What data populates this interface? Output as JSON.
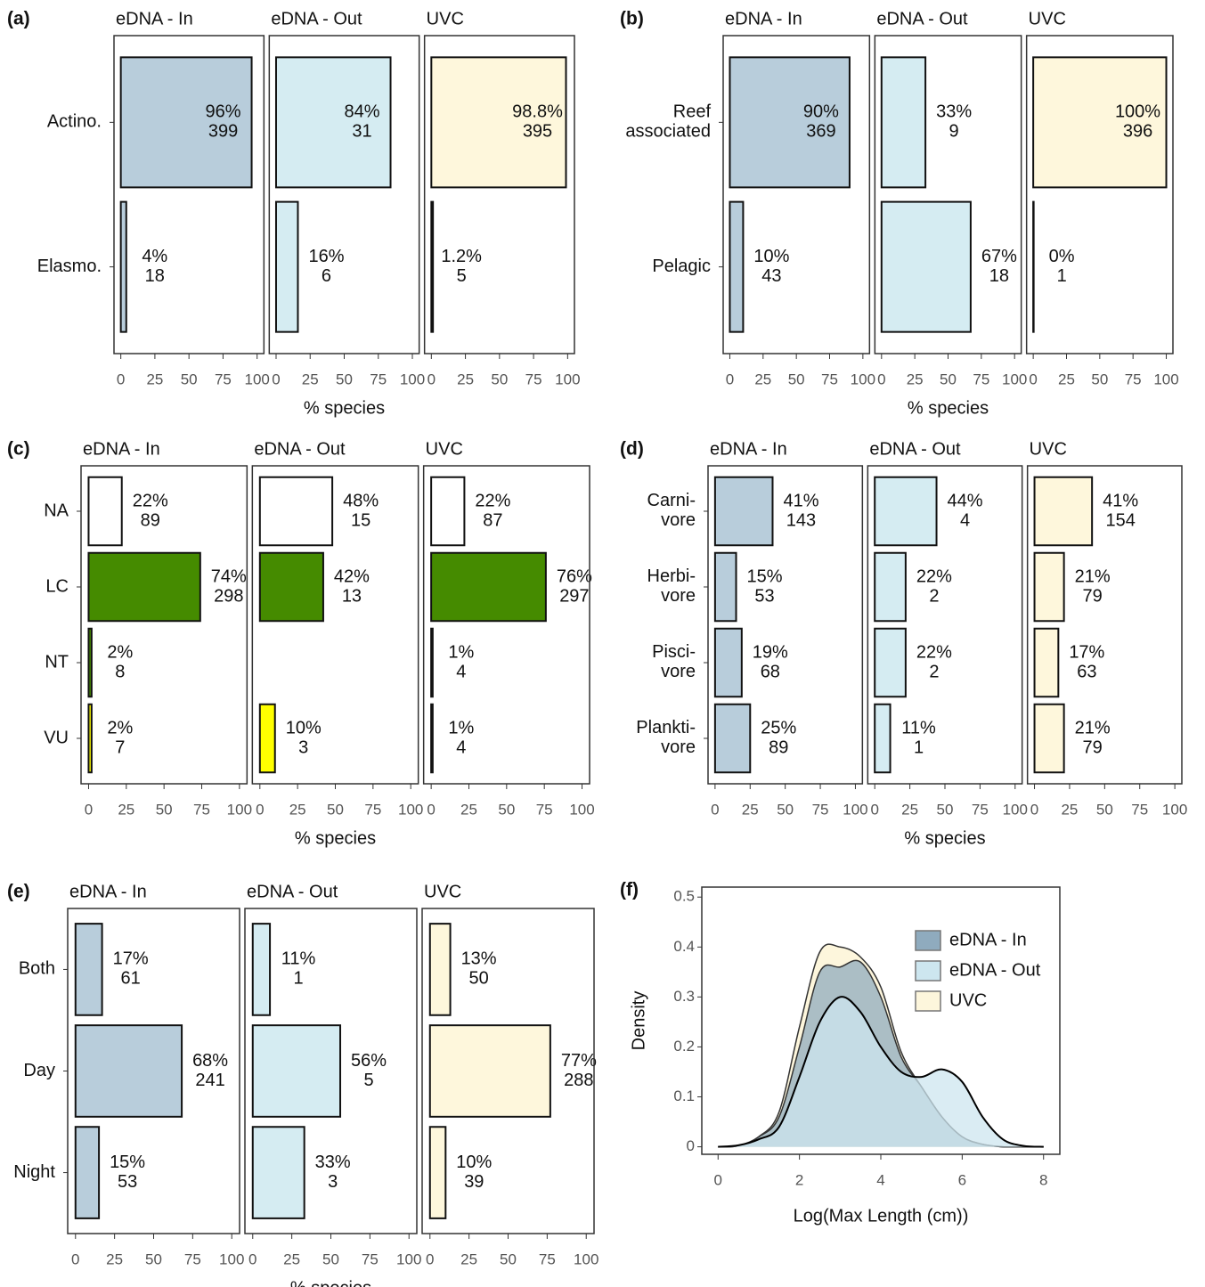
{
  "chart_data": [
    {
      "type": "facet-bar",
      "panel_label": "(a)",
      "xlabel": "% species",
      "xlim": [
        -5,
        105
      ],
      "xticks": [
        0,
        25,
        50,
        75,
        100
      ],
      "categories": [
        "Actino.",
        "Elasmo."
      ],
      "facets": [
        {
          "name": "eDNA - In",
          "color": "#b8cddb",
          "values": [
            96,
            4
          ],
          "value_labels": [
            "96%",
            "4%"
          ],
          "counts": [
            399,
            18
          ]
        },
        {
          "name": "eDNA - Out",
          "color": "#d5ecf2",
          "values": [
            84,
            16
          ],
          "value_labels": [
            "84%",
            "16%"
          ],
          "counts": [
            31,
            6
          ]
        },
        {
          "name": "UVC",
          "color": "#fef7dc",
          "values": [
            98.8,
            1.2
          ],
          "value_labels": [
            "98.8%",
            "1.2%"
          ],
          "counts": [
            395,
            5
          ]
        }
      ]
    },
    {
      "type": "facet-bar",
      "panel_label": "(b)",
      "xlabel": "% species",
      "xlim": [
        -5,
        105
      ],
      "xticks": [
        0,
        25,
        50,
        75,
        100
      ],
      "categories": [
        "Reef\nassociated",
        "Pelagic"
      ],
      "facets": [
        {
          "name": "eDNA - In",
          "color": "#b8cddb",
          "values": [
            90,
            10
          ],
          "value_labels": [
            "90%",
            "10%"
          ],
          "counts": [
            369,
            43
          ]
        },
        {
          "name": "eDNA - Out",
          "color": "#d5ecf2",
          "values": [
            33,
            67
          ],
          "value_labels": [
            "33%",
            "67%"
          ],
          "counts": [
            9,
            18
          ]
        },
        {
          "name": "UVC",
          "color": "#fef7dc",
          "values": [
            100,
            0
          ],
          "value_labels": [
            "100%",
            "0%"
          ],
          "counts": [
            396,
            1
          ]
        }
      ]
    },
    {
      "type": "facet-bar",
      "panel_label": "(c)",
      "xlabel": "% species",
      "xlim": [
        -5,
        105
      ],
      "xticks": [
        0,
        25,
        50,
        75,
        100
      ],
      "categories": [
        "NA",
        "LC",
        "NT",
        "VU"
      ],
      "colors": [
        "#ffffff",
        "#458b00",
        "#458b00",
        "#ffff00"
      ],
      "facets": [
        {
          "name": "eDNA - In",
          "values": [
            22,
            74,
            2,
            2
          ],
          "value_labels": [
            "22%",
            "74%",
            "2%",
            "2%"
          ],
          "counts": [
            89,
            298,
            8,
            7
          ]
        },
        {
          "name": "eDNA - Out",
          "values": [
            48,
            42,
            null,
            10
          ],
          "value_labels": [
            "48%",
            "42%",
            null,
            "10%"
          ],
          "counts": [
            15,
            13,
            null,
            3
          ]
        },
        {
          "name": "UVC",
          "values": [
            22,
            76,
            1,
            1
          ],
          "value_labels": [
            "22%",
            "76%",
            "1%",
            "1%"
          ],
          "counts": [
            87,
            297,
            4,
            4
          ]
        }
      ]
    },
    {
      "type": "facet-bar",
      "panel_label": "(d)",
      "xlabel": "% species",
      "xlim": [
        -5,
        105
      ],
      "xticks": [
        0,
        25,
        50,
        75,
        100
      ],
      "categories": [
        "Carni-\nvore",
        "Herbi-\nvore",
        "Pisci-\nvore",
        "Plankti-\nvore"
      ],
      "facets": [
        {
          "name": "eDNA - In",
          "color": "#b8cddb",
          "values": [
            41,
            15,
            19,
            25
          ],
          "value_labels": [
            "41%",
            "15%",
            "19%",
            "25%"
          ],
          "counts": [
            143,
            53,
            68,
            89
          ]
        },
        {
          "name": "eDNA - Out",
          "color": "#d5ecf2",
          "values": [
            44,
            22,
            22,
            11
          ],
          "value_labels": [
            "44%",
            "22%",
            "22%",
            "11%"
          ],
          "counts": [
            4,
            2,
            2,
            1
          ]
        },
        {
          "name": "UVC",
          "color": "#fef7dc",
          "values": [
            41,
            21,
            17,
            21
          ],
          "value_labels": [
            "41%",
            "21%",
            "17%",
            "21%"
          ],
          "counts": [
            154,
            79,
            63,
            79
          ]
        }
      ]
    },
    {
      "type": "facet-bar",
      "panel_label": "(e)",
      "xlabel": "% species",
      "xlim": [
        -5,
        105
      ],
      "xticks": [
        0,
        25,
        50,
        75,
        100
      ],
      "categories": [
        "Both",
        "Day",
        "Night"
      ],
      "facets": [
        {
          "name": "eDNA - In",
          "color": "#b8cddb",
          "values": [
            17,
            68,
            15
          ],
          "value_labels": [
            "17%",
            "68%",
            "15%"
          ],
          "counts": [
            61,
            241,
            53
          ]
        },
        {
          "name": "eDNA - Out",
          "color": "#d5ecf2",
          "values": [
            11,
            56,
            33
          ],
          "value_labels": [
            "11%",
            "56%",
            "33%"
          ],
          "counts": [
            1,
            5,
            3
          ]
        },
        {
          "name": "UVC",
          "color": "#fef7dc",
          "values": [
            13,
            77,
            10
          ],
          "value_labels": [
            "13%",
            "77%",
            "10%"
          ],
          "counts": [
            50,
            288,
            39
          ]
        }
      ]
    },
    {
      "type": "density",
      "panel_label": "(f)",
      "xlabel": "Log(Max Length (cm))",
      "ylabel": "Density",
      "xlim": [
        -0.4,
        8.4
      ],
      "xticks": [
        0,
        2,
        4,
        6,
        8
      ],
      "ylim": [
        -0.015,
        0.52
      ],
      "yticks": [
        0,
        0.1,
        0.2,
        0.3,
        0.4,
        0.5
      ],
      "legend": "top-right",
      "x": [
        0,
        0.5,
        1,
        1.5,
        2,
        2.5,
        3,
        3.5,
        4,
        4.5,
        5,
        5.5,
        6,
        6.5,
        7,
        7.5,
        8
      ],
      "series": [
        {
          "name": "eDNA - In",
          "color": "#8fabbe",
          "values": [
            0,
            0.002,
            0.02,
            0.06,
            0.2,
            0.35,
            0.36,
            0.37,
            0.3,
            0.18,
            0.12,
            0.06,
            0.02,
            0.005,
            0,
            0,
            0
          ]
        },
        {
          "name": "eDNA - Out",
          "color": "#cde6ef",
          "values": [
            0,
            0.003,
            0.015,
            0.04,
            0.14,
            0.25,
            0.3,
            0.27,
            0.2,
            0.15,
            0.14,
            0.155,
            0.13,
            0.06,
            0.015,
            0.002,
            0
          ]
        },
        {
          "name": "UVC",
          "color": "#fdf6dc",
          "values": [
            0,
            0.002,
            0.02,
            0.07,
            0.24,
            0.39,
            0.4,
            0.38,
            0.32,
            0.19,
            0.12,
            0.06,
            0.02,
            0.005,
            0,
            0,
            0
          ]
        }
      ]
    }
  ]
}
